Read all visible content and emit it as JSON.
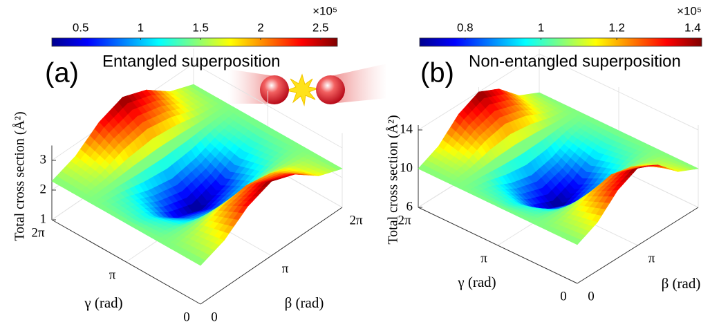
{
  "chart_data": [
    {
      "type": "surface",
      "panel_label": "(a)",
      "title": "Entangled superposition",
      "xlabel": "γ (rad)",
      "ylabel": "β (rad)",
      "zlabel": "Total cross section (Å²)",
      "x": [
        0,
        1.0472,
        2.0944,
        3.1416,
        4.1888,
        5.236,
        6.2832
      ],
      "y": [
        0,
        1.0472,
        2.0944,
        3.1416,
        4.1888,
        5.236,
        6.2832
      ],
      "z": [
        [
          2.3,
          2.6,
          3.2,
          3.5,
          3.2,
          2.6,
          2.3
        ],
        [
          2.3,
          2.45,
          2.75,
          2.9,
          2.75,
          2.45,
          2.3
        ],
        [
          2.3,
          2.15,
          1.85,
          1.7,
          1.85,
          2.15,
          2.3
        ],
        [
          2.3,
          2.0,
          1.4,
          1.1,
          1.4,
          2.0,
          2.3
        ],
        [
          2.3,
          2.15,
          1.85,
          1.7,
          1.85,
          2.15,
          2.3
        ],
        [
          2.3,
          2.45,
          2.75,
          2.9,
          2.75,
          2.45,
          2.3
        ],
        [
          2.3,
          2.6,
          3.2,
          3.5,
          3.2,
          2.6,
          2.3
        ]
      ],
      "xlim": [
        0,
        6.2832
      ],
      "ylim": [
        0,
        6.2832
      ],
      "zlim": [
        1,
        3.5
      ],
      "xticks": [
        0,
        {
          "value": 3.1416,
          "label": "π"
        },
        {
          "value": 6.2832,
          "label": "2π"
        }
      ],
      "yticks": [
        0,
        {
          "value": 3.1416,
          "label": "π"
        },
        {
          "value": 6.2832,
          "label": "2π"
        }
      ],
      "zticks": [
        1,
        2,
        3
      ],
      "colormap": "jet",
      "clim": [
        0.26,
        2.64
      ],
      "cticks": [
        0.5,
        1,
        1.5,
        2,
        2.5
      ],
      "colorbar_exponent": "×10⁵"
    },
    {
      "type": "surface",
      "panel_label": "(b)",
      "title": "Non-entangled superposition",
      "xlabel": "γ (rad)",
      "ylabel": "β (rad)",
      "zlabel": "Total cross section (Å²)",
      "x": [
        0,
        1.0472,
        2.0944,
        3.1416,
        4.1888,
        5.236,
        6.2832
      ],
      "y": [
        0,
        1.0472,
        2.0944,
        3.1416,
        4.1888,
        5.236,
        6.2832
      ],
      "z": [
        [
          10,
          11,
          13,
          14,
          13,
          11,
          10
        ],
        [
          10,
          10.5,
          11.5,
          12,
          11.5,
          10.5,
          10
        ],
        [
          10,
          9.5,
          8.5,
          8,
          8.5,
          9.5,
          10
        ],
        [
          10,
          9,
          7,
          6,
          7,
          9,
          10
        ],
        [
          10,
          9.5,
          8.5,
          8,
          8.5,
          9.5,
          10
        ],
        [
          10,
          10.5,
          11.5,
          12,
          11.5,
          10.5,
          10
        ],
        [
          10,
          11,
          13,
          14,
          13,
          11,
          10
        ]
      ],
      "xlim": [
        0,
        6.2832
      ],
      "ylim": [
        0,
        6.2832
      ],
      "zlim": [
        6,
        14.5
      ],
      "xticks": [
        0,
        {
          "value": 3.1416,
          "label": "π"
        },
        {
          "value": 6.2832,
          "label": "2π"
        }
      ],
      "yticks": [
        0,
        {
          "value": 3.1416,
          "label": "π"
        }
      ],
      "zticks": [
        6,
        10,
        14
      ],
      "colormap": "jet",
      "clim": [
        0.68,
        1.424
      ],
      "cticks": [
        0.8,
        1,
        1.2,
        1.4
      ],
      "colorbar_exponent": "×10⁵"
    }
  ]
}
